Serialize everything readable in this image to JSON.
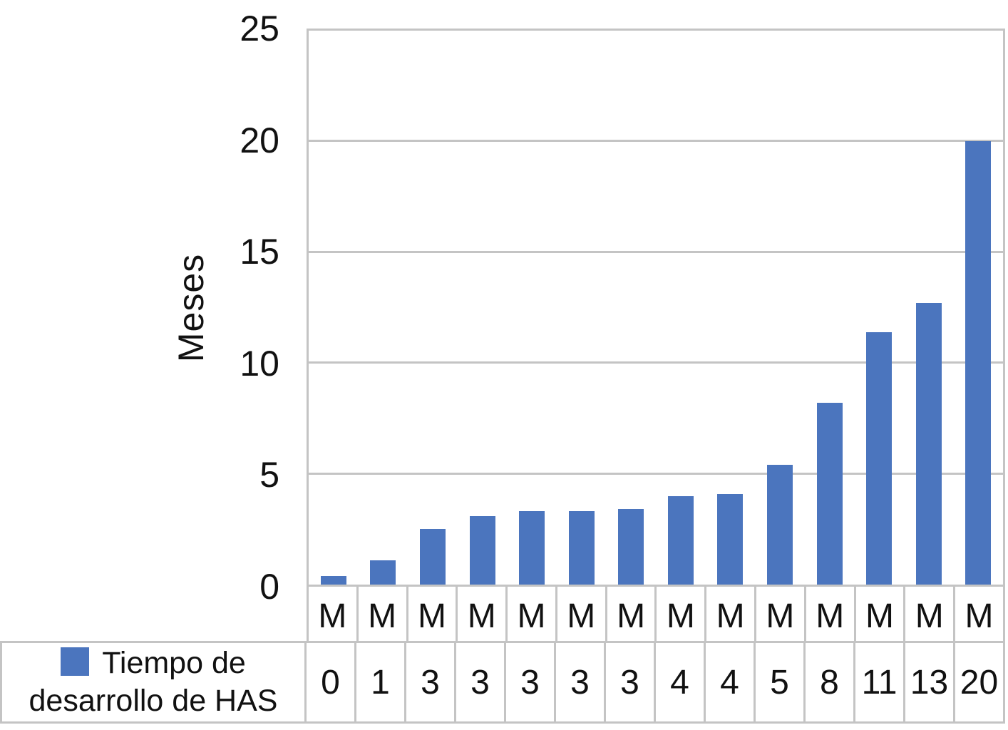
{
  "chart_data": {
    "type": "bar",
    "title": "",
    "xlabel": "",
    "ylabel": "Meses",
    "ylim": [
      0,
      25
    ],
    "yticks": [
      0,
      5,
      10,
      15,
      20,
      25
    ],
    "grid": true,
    "legend_position": "bottom-table-left",
    "categories": [
      "M",
      "M",
      "M",
      "M",
      "M",
      "M",
      "M",
      "M",
      "M",
      "M",
      "M",
      "M",
      "M",
      "M"
    ],
    "series": [
      {
        "name": "Tiempo de desarrollo de HAS",
        "values": [
          0.4,
          1.1,
          2.5,
          3.1,
          3.3,
          3.3,
          3.4,
          4.0,
          4.1,
          5.4,
          8.2,
          11.4,
          12.7,
          20.0
        ],
        "data_table_labels": [
          "0",
          "1",
          "3",
          "3",
          "3",
          "3",
          "3",
          "4",
          "4",
          "5",
          "8",
          "11",
          "13",
          "20"
        ]
      }
    ],
    "colors": {
      "bar": "#4B75BE",
      "grid": "#C4C4C4",
      "text": "#111111",
      "background": "#FFFFFF"
    }
  },
  "legend": {
    "lines": [
      "Tiempo de",
      "desarrollo de HAS"
    ]
  }
}
